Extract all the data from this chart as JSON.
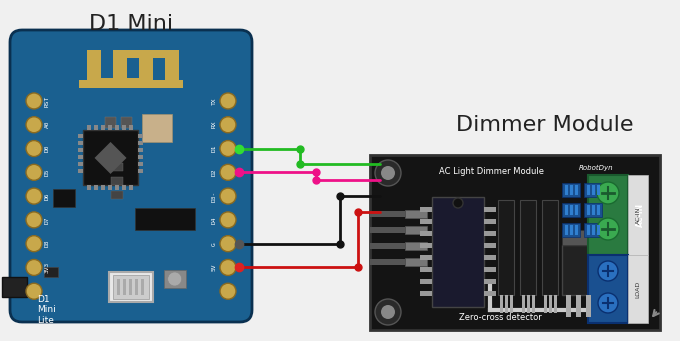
{
  "background_color": "#f0f0f0",
  "d1mini_label": "D1 Mini",
  "d1mini_sublabel": "D1\nMini\nLite",
  "dimmer_label": "Dimmer Module",
  "dimmer_sublabel": "Zero-cross detector",
  "dimmer_inner_label": "AC Light Dimmer Module",
  "dimmer_brand": "RobotDyn",
  "load_label": "LOAD",
  "ac_in_label": "AC-IN",
  "board_color": "#1a6090",
  "board_edge": "#0a3050",
  "pin_gold": "#c8a84b",
  "chip_dark": "#1a1a1a",
  "chip_main": "#222222",
  "antenna_gold": "#c8a84b",
  "wire_green": "#22bb22",
  "wire_pink": "#ee1188",
  "wire_black": "#111111",
  "wire_red": "#cc1111",
  "connector_green_color": "#2d8a4e",
  "connector_blue_color": "#2060a0",
  "module_black": "#141414",
  "figsize": [
    6.8,
    3.41
  ],
  "dpi": 100
}
